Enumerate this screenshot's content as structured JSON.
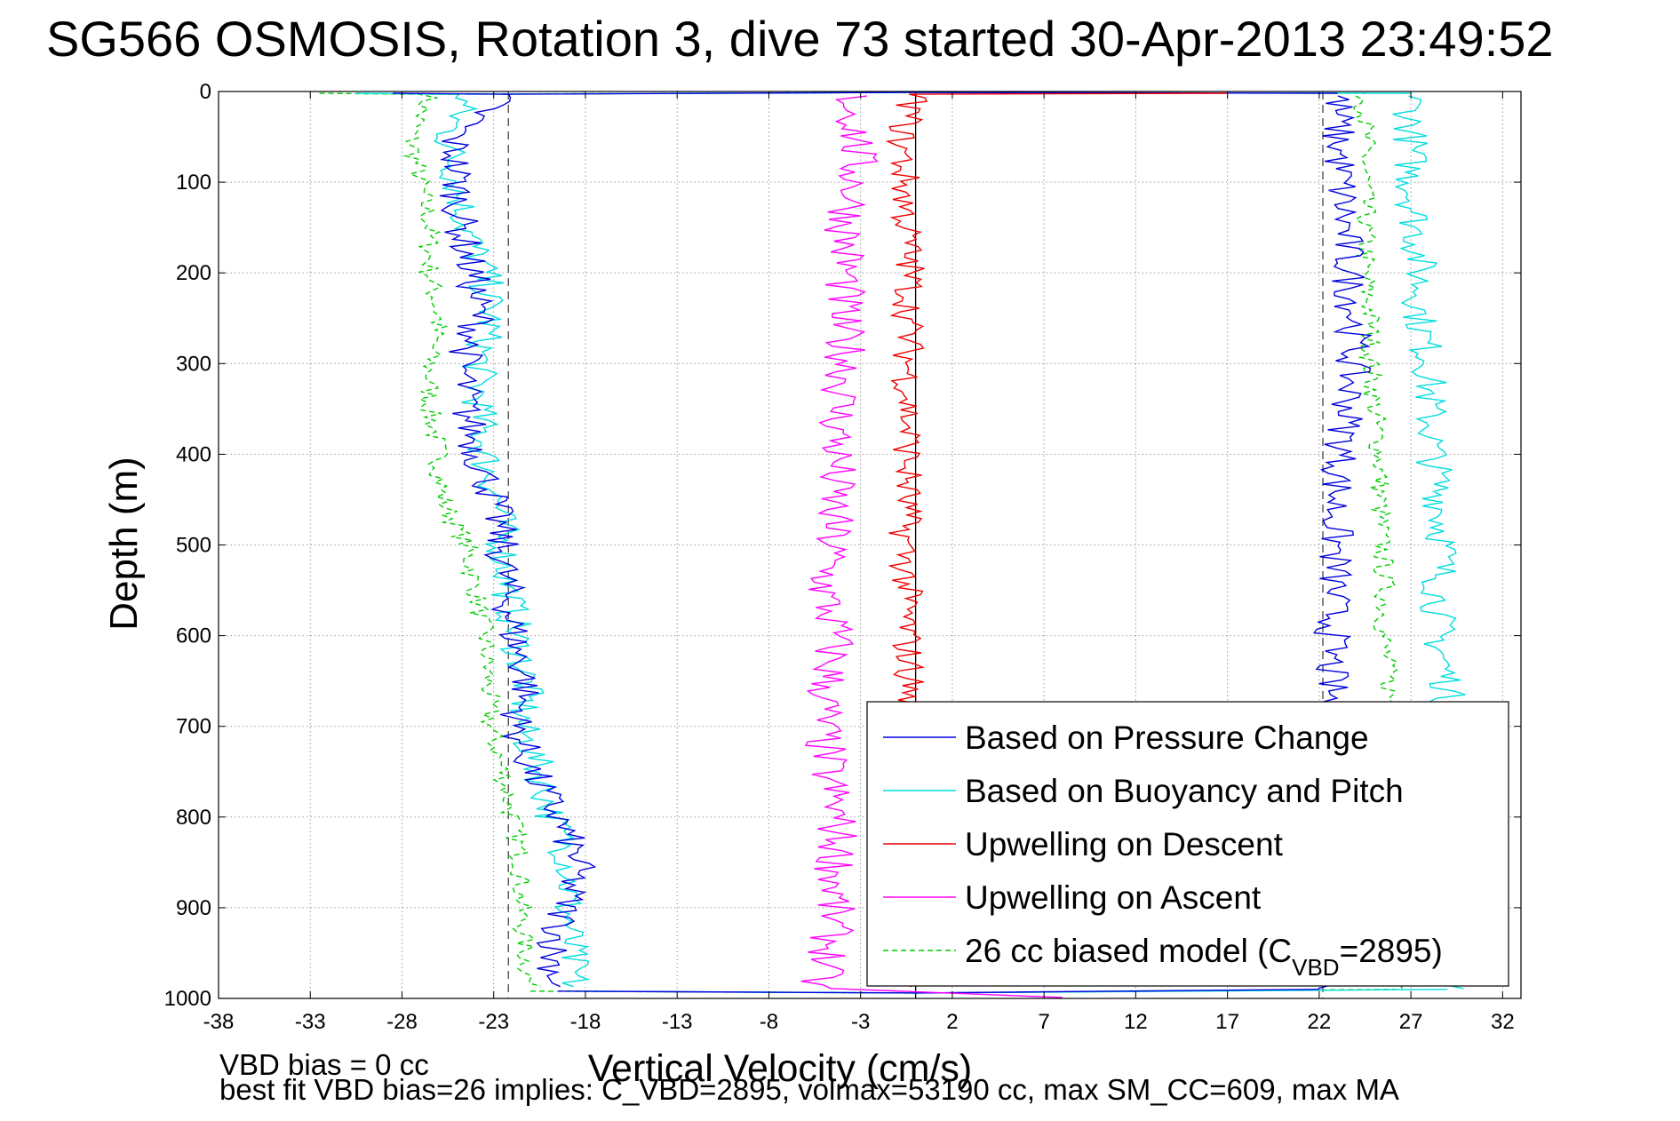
{
  "chart_data": {
    "type": "line",
    "title": "SG566 OSMOSIS, Rotation 3, dive 73 started 30-Apr-2013 23:49:52",
    "xlabel": "Vertical Velocity (cm/s)",
    "ylabel": "Depth (m)",
    "xlim": [
      -38,
      33
    ],
    "ylim": [
      0,
      1000
    ],
    "y_reversed": true,
    "xticks": [
      -38,
      -33,
      -28,
      -23,
      -18,
      -13,
      -8,
      -3,
      2,
      7,
      12,
      17,
      22,
      27,
      32
    ],
    "yticks": [
      0,
      100,
      200,
      300,
      400,
      500,
      600,
      700,
      800,
      900,
      1000
    ],
    "grid": true,
    "legend_position": "lower-right",
    "reference_lines": [
      {
        "style": "dashed",
        "x": -22.2
      },
      {
        "style": "dashed",
        "x": 22.2
      },
      {
        "style": "solid",
        "x": 0
      }
    ],
    "series": [
      {
        "name": "Based on Pressure Change",
        "color": "#0000dd",
        "style": "solid",
        "descent": {
          "depth": [
            3,
            50,
            100,
            150,
            200,
            250,
            300,
            350,
            400,
            450,
            500,
            550,
            600,
            650,
            700,
            750,
            800,
            850,
            900,
            950,
            990
          ],
          "velocity": [
            -22.5,
            -25.2,
            -25,
            -24.8,
            -24.2,
            -23.8,
            -24.7,
            -24.5,
            -23.9,
            -23,
            -22.6,
            -22.3,
            -21.9,
            -21.2,
            -21.8,
            -20.9,
            -19.5,
            -18.4,
            -19.1,
            -19.8,
            -19.5
          ]
        },
        "ascent": {
          "depth": [
            990,
            950,
            900,
            850,
            800,
            750,
            700,
            650,
            600,
            550,
            500,
            450,
            400,
            350,
            300,
            250,
            200,
            150,
            100,
            50,
            5
          ],
          "velocity": [
            22,
            22.1,
            22.2,
            22.3,
            22.4,
            22.7,
            22.8,
            22.6,
            22.7,
            22.8,
            22.9,
            22.9,
            23.2,
            23.6,
            23.8,
            23.9,
            23.6,
            23.4,
            23.2,
            23,
            23
          ]
        }
      },
      {
        "name": "Based on Buoyancy and Pitch",
        "color": "#00dddd",
        "style": "solid",
        "descent": {
          "depth": [
            3,
            50,
            100,
            150,
            200,
            250,
            300,
            350,
            400,
            450,
            500,
            550,
            600,
            650,
            700,
            750,
            800,
            850,
            900,
            950,
            990
          ],
          "velocity": [
            -24.5,
            -25.5,
            -25,
            -24.5,
            -23.5,
            -23.2,
            -23.8,
            -23.8,
            -23.5,
            -22.8,
            -22.5,
            -22.2,
            -21.8,
            -21.2,
            -21.5,
            -20.5,
            -19.8,
            -18.8,
            -19,
            -18.8,
            -18.6
          ]
        },
        "ascent": {
          "depth": [
            990,
            950,
            900,
            850,
            800,
            750,
            700,
            650,
            600,
            550,
            500,
            450,
            400,
            350,
            300,
            250,
            200,
            150,
            100,
            50,
            5
          ],
          "velocity": [
            29,
            29,
            29,
            29,
            29,
            29,
            29,
            29,
            28.5,
            28.5,
            28.8,
            28.6,
            28.2,
            28,
            28,
            27.5,
            27.5,
            27.3,
            27,
            27,
            27
          ]
        }
      },
      {
        "name": "Upwelling on Descent",
        "color": "#ee0000",
        "style": "solid",
        "depth": [
          3,
          50,
          100,
          150,
          200,
          250,
          300,
          350,
          400,
          450,
          500,
          550,
          600,
          650,
          700,
          750,
          800,
          850,
          900,
          950,
          990
        ],
        "velocity": [
          0,
          -0.8,
          -0.6,
          -0.5,
          -0.3,
          -0.4,
          -0.4,
          -0.4,
          -0.4,
          -0.5,
          -0.6,
          -0.5,
          -0.5,
          -0.3,
          -0.4,
          -0.6,
          -0.3,
          -0.5,
          -0.4,
          -0.3,
          -0.3
        ]
      },
      {
        "name": "Upwelling on Ascent",
        "color": "#ff00ff",
        "style": "solid",
        "depth": [
          5,
          50,
          100,
          150,
          200,
          250,
          300,
          350,
          400,
          450,
          500,
          550,
          600,
          650,
          700,
          750,
          800,
          850,
          900,
          950,
          990
        ],
        "velocity": [
          -3.5,
          -3.2,
          -3.3,
          -3.8,
          -3.8,
          -4.1,
          -3.7,
          -4.2,
          -4.3,
          -4.5,
          -4.6,
          -5,
          -4.4,
          -4.8,
          -5.1,
          -4.8,
          -4.3,
          -4.3,
          -4.5,
          -4.7,
          -5.5
        ]
      },
      {
        "name": "26 cc biased model (C",
        "name_subscript": "VBD",
        "name_suffix": "=2895)",
        "color": "#00cc00",
        "style": "dashed",
        "descent": {
          "depth": [
            3,
            50,
            100,
            150,
            200,
            250,
            300,
            350,
            400,
            450,
            500,
            550,
            600,
            650,
            700,
            750,
            800,
            850,
            900,
            950,
            990
          ],
          "velocity": [
            -26.5,
            -27.5,
            -27,
            -26.5,
            -26.5,
            -26,
            -26.5,
            -26.5,
            -26,
            -25.8,
            -24.5,
            -24,
            -23.5,
            -23.3,
            -23.2,
            -22.5,
            -22,
            -21.5,
            -21.5,
            -21.3,
            -21
          ]
        },
        "ascent": {
          "depth": [
            990,
            950,
            900,
            850,
            800,
            750,
            700,
            650,
            600,
            550,
            500,
            450,
            400,
            350,
            300,
            250,
            200,
            150,
            100,
            50,
            5
          ],
          "velocity": [
            26.2,
            26.2,
            26.2,
            26.2,
            26.2,
            26.1,
            26,
            25.8,
            25.5,
            25.6,
            25.4,
            25.3,
            25.3,
            25,
            24.8,
            24.8,
            24.5,
            24.5,
            24.5,
            24.5,
            24.5
          ]
        }
      }
    ]
  },
  "footer": {
    "line1": "VBD bias = 0 cc",
    "line2": "best fit VBD bias=26 implies: C_VBD=2895, volmax=53190 cc, max SM_CC=609, max MA"
  }
}
